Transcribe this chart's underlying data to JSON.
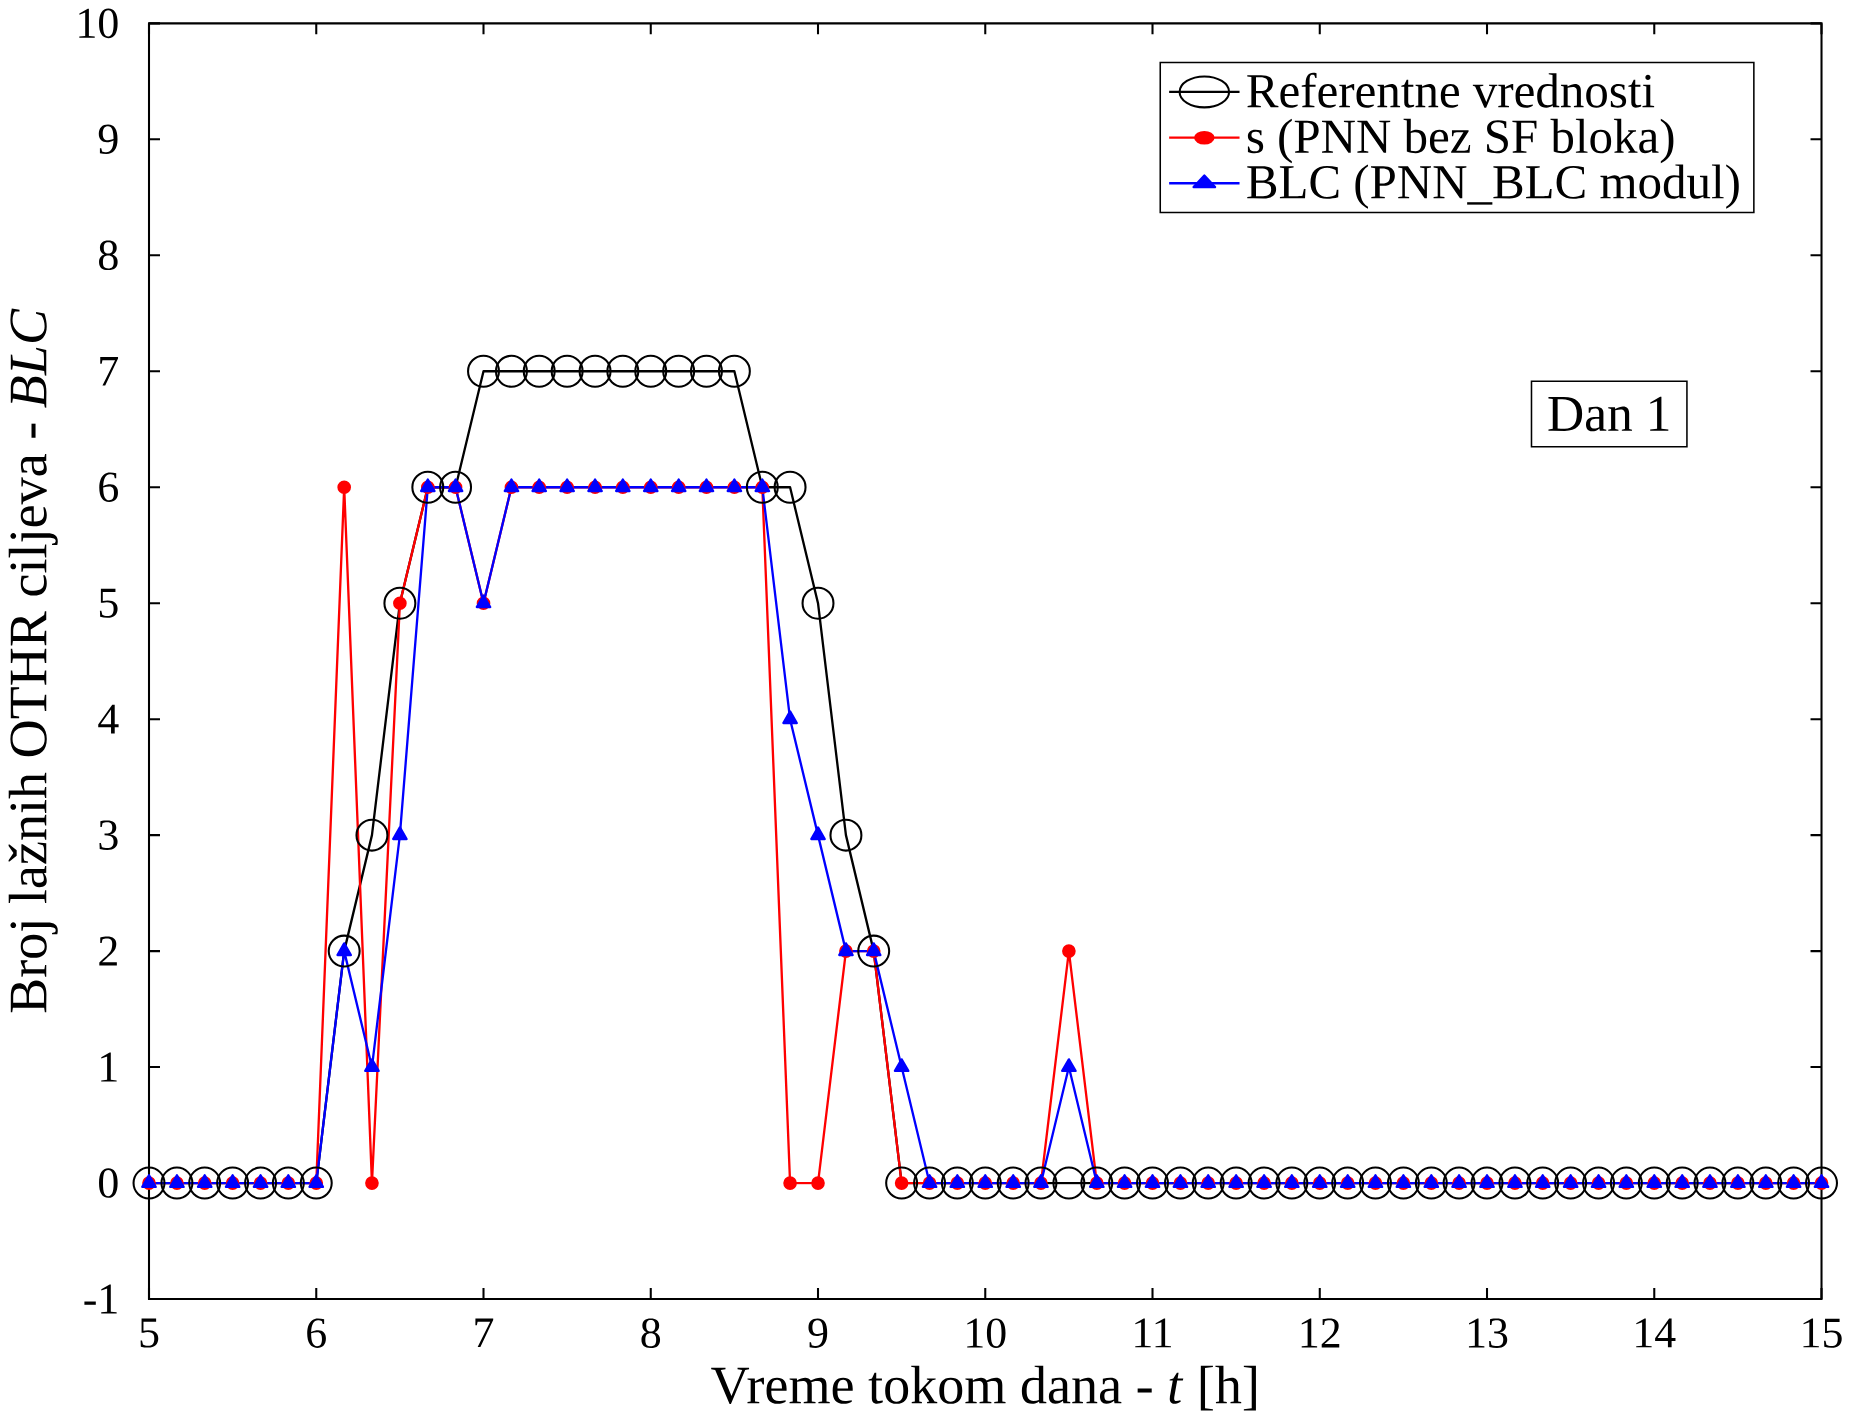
{
  "chart_data": {
    "type": "line",
    "xlabel": "Vreme tokom dana - *t* [h]",
    "ylabel": "Broj lažnih OTHR ciljeva - *BLC*",
    "x": [
      5,
      5.167,
      5.333,
      5.5,
      5.667,
      5.833,
      6,
      6.167,
      6.333,
      6.5,
      6.667,
      6.833,
      7,
      7.167,
      7.333,
      7.5,
      7.667,
      7.833,
      8,
      8.167,
      8.333,
      8.5,
      8.667,
      8.833,
      9,
      9.167,
      9.333,
      9.5,
      9.667,
      9.833,
      10,
      10.167,
      10.333,
      10.5,
      10.667,
      10.833,
      11,
      11.167,
      11.333,
      11.5,
      11.667,
      11.833,
      12,
      12.167,
      12.333,
      12.5,
      12.667,
      12.833,
      13,
      13.167,
      13.333,
      13.5,
      13.667,
      13.833,
      14,
      14.167,
      14.333,
      14.5,
      14.667,
      14.833,
      15
    ],
    "series": [
      {
        "name": "Referentne vrednosti",
        "color": "#000000",
        "marker": "circle",
        "values": [
          0,
          0,
          0,
          0,
          0,
          0,
          0,
          2,
          3,
          5,
          6,
          6,
          7,
          7,
          7,
          7,
          7,
          7,
          7,
          7,
          7,
          7,
          6,
          6,
          5,
          3,
          2,
          0,
          0,
          0,
          0,
          0,
          0,
          0,
          0,
          0,
          0,
          0,
          0,
          0,
          0,
          0,
          0,
          0,
          0,
          0,
          0,
          0,
          0,
          0,
          0,
          0,
          0,
          0,
          0,
          0,
          0,
          0,
          0,
          0,
          0
        ]
      },
      {
        "name": "s (PNN bez SF bloka)",
        "color": "#ff0000",
        "marker": "dot",
        "values": [
          0,
          0,
          0,
          0,
          0,
          0,
          0,
          6,
          0,
          5,
          6,
          6,
          5,
          6,
          6,
          6,
          6,
          6,
          6,
          6,
          6,
          6,
          6,
          0,
          0,
          2,
          2,
          0,
          0,
          0,
          0,
          0,
          0,
          2,
          0,
          0,
          0,
          0,
          0,
          0,
          0,
          0,
          0,
          0,
          0,
          0,
          0,
          0,
          0,
          0,
          0,
          0,
          0,
          0,
          0,
          0,
          0,
          0,
          0,
          0,
          0
        ]
      },
      {
        "name": "BLC (PNN_BLC modul)",
        "color": "#0000ff",
        "marker": "triangle",
        "values": [
          0,
          0,
          0,
          0,
          0,
          0,
          0,
          2,
          1,
          3,
          6,
          6,
          5,
          6,
          6,
          6,
          6,
          6,
          6,
          6,
          6,
          6,
          6,
          4,
          3,
          2,
          2,
          1,
          0,
          0,
          0,
          0,
          0,
          1,
          0,
          0,
          0,
          0,
          0,
          0,
          0,
          0,
          0,
          0,
          0,
          0,
          0,
          0,
          0,
          0,
          0,
          0,
          0,
          0,
          0,
          0,
          0,
          0,
          0,
          0,
          0
        ]
      }
    ],
    "xlim": [
      5,
      15
    ],
    "xticks": [
      5,
      6,
      7,
      8,
      9,
      10,
      11,
      12,
      13,
      14,
      15
    ],
    "ylim": [
      -1,
      10
    ],
    "yticks": [
      -1,
      0,
      1,
      2,
      3,
      4,
      5,
      6,
      7,
      8,
      9,
      10
    ],
    "legend": "top right",
    "grid": false,
    "line_style": "solid",
    "annotations": [
      "Dan 1"
    ]
  }
}
